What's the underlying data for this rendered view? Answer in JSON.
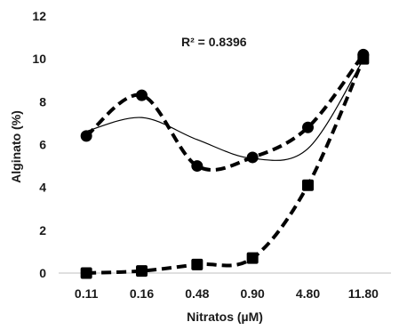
{
  "chart_data": {
    "type": "line",
    "title": "",
    "xlabel": "Nitratos (µM)",
    "ylabel": "Alginato (%)",
    "categories": [
      "0.11",
      "0.16",
      "0.48",
      "0.90",
      "4.80",
      "11.80"
    ],
    "ylim": [
      0,
      12
    ],
    "yticks": [
      0,
      2,
      4,
      6,
      8,
      10,
      12
    ],
    "grid": false,
    "legend": "none",
    "series": [
      {
        "values": [
          6.4,
          8.3,
          5.0,
          5.4,
          6.8,
          10.2
        ],
        "marker": "circle",
        "line_style": "dashed",
        "color": "#000000"
      },
      {
        "values": [
          0.0,
          0.1,
          0.4,
          0.7,
          4.1,
          10.0
        ],
        "marker": "square",
        "line_style": "dashed",
        "color": "#000000"
      }
    ],
    "trendline": {
      "kind": "polynomial",
      "of_series": 0,
      "line_style": "solid",
      "color": "#000000",
      "values": [
        6.62,
        7.26,
        6.23,
        5.35,
        5.81,
        9.97
      ]
    },
    "annotations": [
      {
        "text": "R² = 0.8396"
      }
    ]
  }
}
